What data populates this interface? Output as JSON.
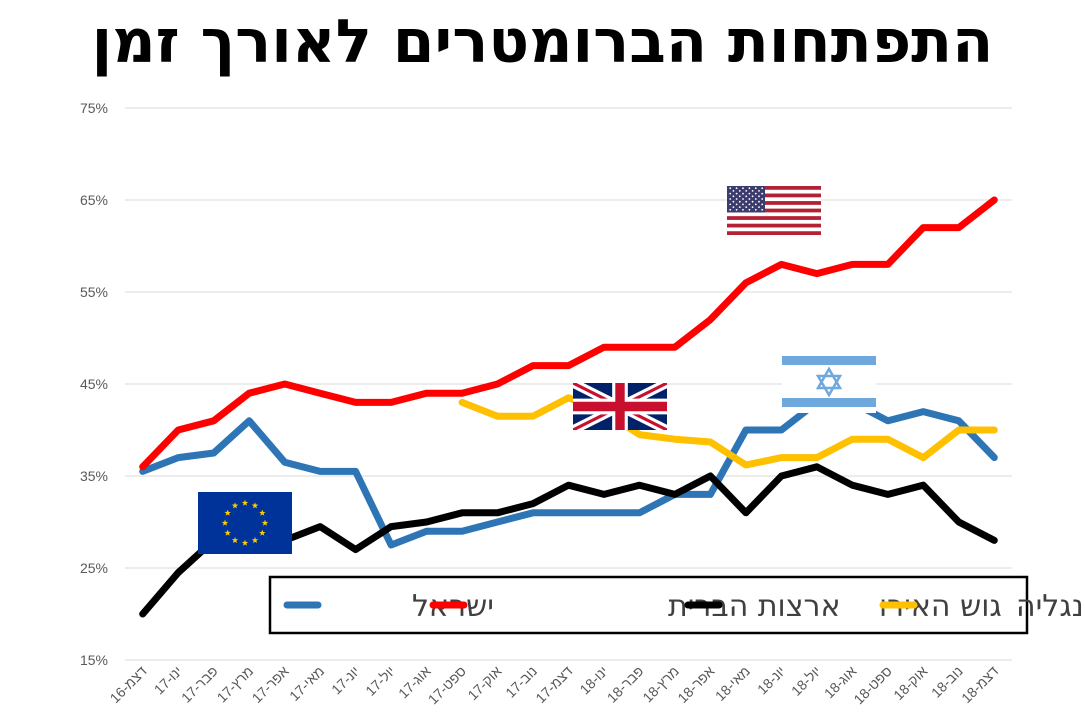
{
  "chart_data": {
    "type": "line",
    "title": "התפתחות הברומטרים לאורך זמן",
    "categories": [
      "דצמ-16",
      "ינו-17",
      "פבר-17",
      "מרץ-17",
      "אפר-17",
      "מאי-17",
      "יונ-17",
      "יול-17",
      "אוג-17",
      "ספט-17",
      "אוק-17",
      "נוב-17",
      "דצמ-17",
      "ינו-18",
      "פבר-18",
      "מרץ-18",
      "אפר-18",
      "מאי-18",
      "יונ-18",
      "יול-18",
      "אוג-18",
      "ספט-18",
      "אוק-18",
      "נוב-18",
      "דצמ-18"
    ],
    "y_ticks": [
      "75%",
      "65%",
      "55%",
      "45%",
      "35%",
      "25%",
      "15%"
    ],
    "ylim": [
      15,
      75
    ],
    "y_unit": "%",
    "grid": true,
    "legend_position": "bottom",
    "series": [
      {
        "name": "ישראל",
        "color": "#2E75B6",
        "values": [
          35.5,
          37,
          37.5,
          41,
          36.5,
          35.5,
          35.5,
          27.5,
          29,
          29,
          30,
          31,
          31,
          31,
          31,
          33,
          33,
          40,
          40,
          43,
          43,
          41,
          42,
          41,
          37
        ]
      },
      {
        "name": "ארצות הברית",
        "color": "#FF0000",
        "values": [
          36,
          40,
          41,
          44,
          45,
          44,
          43,
          43,
          44,
          44,
          45,
          47,
          47,
          49,
          49,
          49,
          52,
          56,
          58,
          57,
          58,
          58,
          62,
          62,
          65
        ]
      },
      {
        "name": "גוש האירו",
        "color": "#000000",
        "values": [
          20,
          24.5,
          28,
          28,
          28,
          29.5,
          27,
          29.5,
          30,
          31,
          31,
          32,
          34,
          33,
          34,
          33,
          35,
          31,
          35,
          36,
          34,
          33,
          34,
          30,
          28
        ]
      },
      {
        "name": "אנגליה",
        "color": "#FFC000",
        "values": [
          null,
          null,
          null,
          null,
          null,
          null,
          null,
          null,
          null,
          43,
          41.5,
          41.5,
          43.5,
          42,
          39.5,
          39,
          38.7,
          36.2,
          37,
          37,
          39,
          39,
          37,
          40,
          40
        ]
      }
    ],
    "annotations": [
      {
        "icon": "us-flag-icon",
        "series": "ארצות הברית"
      },
      {
        "icon": "israel-flag-icon",
        "series": "ישראל"
      },
      {
        "icon": "uk-flag-icon",
        "series": "אנגליה"
      },
      {
        "icon": "eu-flag-icon",
        "series": "גוש האירו"
      }
    ]
  }
}
